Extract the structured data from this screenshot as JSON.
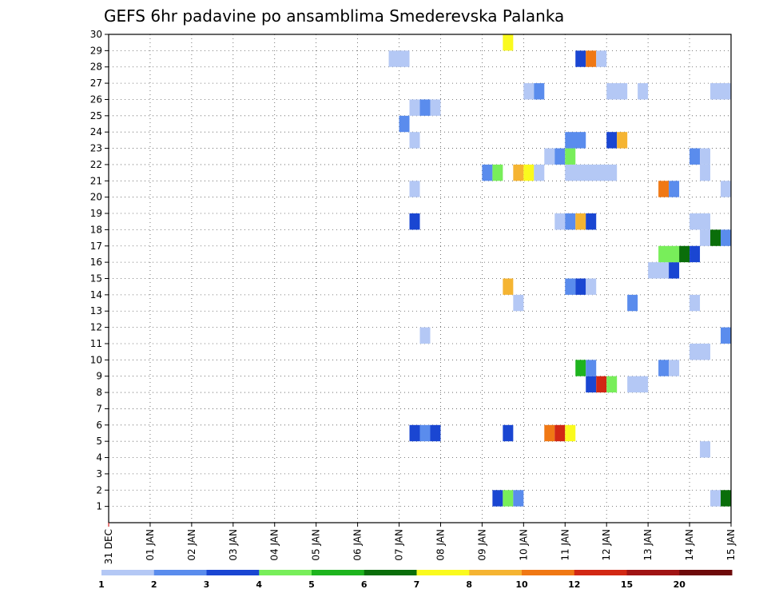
{
  "chart_data": {
    "type": "heatmap",
    "title": "GEFS 6hr padavine po ansamblima Smederevska Palanka",
    "y_ticks": [
      "1",
      "2",
      "3",
      "4",
      "5",
      "6",
      "7",
      "8",
      "9",
      "10",
      "11",
      "12",
      "13",
      "14",
      "15",
      "16",
      "17",
      "18",
      "19",
      "20",
      "21",
      "22",
      "23",
      "24",
      "25",
      "26",
      "27",
      "28",
      "29",
      "30"
    ],
    "x_ticks": [
      "31 DEC",
      "01 JAN",
      "02 JAN",
      "03 JAN",
      "04 JAN",
      "05 JAN",
      "06 JAN",
      "07 JAN",
      "08 JAN",
      "09 JAN",
      "10 JAN",
      "11 JAN",
      "12 JAN",
      "13 JAN",
      "14 JAN",
      "15 JAN"
    ],
    "x_range_days": [
      0,
      15
    ],
    "y_range": [
      0,
      30
    ],
    "grid": "dotted",
    "legend": {
      "placement": "bottom",
      "colors": [
        "#b4c8f5",
        "#5a8ced",
        "#1a46d2",
        "#78ee5a",
        "#1eb41e",
        "#0a6e0a",
        "#fafa1e",
        "#f5b432",
        "#f07814",
        "#d22814",
        "#a01414",
        "#6e0a0a"
      ],
      "labels": [
        "1",
        "2",
        "3",
        "4",
        "5",
        "6",
        "7",
        "8",
        "10",
        "12",
        "15",
        "20"
      ]
    },
    "cells": [
      {
        "member": 1,
        "start": 9.25,
        "end": 9.5,
        "color": "#1a46d2"
      },
      {
        "member": 1,
        "start": 9.5,
        "end": 9.75,
        "color": "#78ee5a"
      },
      {
        "member": 1,
        "start": 9.75,
        "end": 10.0,
        "color": "#5a8ced"
      },
      {
        "member": 1,
        "start": 14.5,
        "end": 14.75,
        "color": "#b4c8f5"
      },
      {
        "member": 1,
        "start": 14.75,
        "end": 15.0,
        "color": "#0a6e0a"
      },
      {
        "member": 4,
        "start": 14.25,
        "end": 14.5,
        "color": "#b4c8f5"
      },
      {
        "member": 5,
        "start": 7.25,
        "end": 7.5,
        "color": "#1a46d2"
      },
      {
        "member": 5,
        "start": 7.5,
        "end": 7.75,
        "color": "#5a8ced"
      },
      {
        "member": 5,
        "start": 7.75,
        "end": 8.0,
        "color": "#1a46d2"
      },
      {
        "member": 5,
        "start": 9.5,
        "end": 9.75,
        "color": "#1a46d2"
      },
      {
        "member": 5,
        "start": 10.5,
        "end": 10.75,
        "color": "#f07814"
      },
      {
        "member": 5,
        "start": 10.75,
        "end": 11.0,
        "color": "#d22814"
      },
      {
        "member": 5,
        "start": 11.0,
        "end": 11.25,
        "color": "#fafa1e"
      },
      {
        "member": 8,
        "start": 11.5,
        "end": 11.75,
        "color": "#1a46d2"
      },
      {
        "member": 8,
        "start": 11.75,
        "end": 12.0,
        "color": "#d22814"
      },
      {
        "member": 8,
        "start": 12.0,
        "end": 12.25,
        "color": "#78ee5a"
      },
      {
        "member": 8,
        "start": 12.5,
        "end": 13.0,
        "color": "#b4c8f5"
      },
      {
        "member": 9,
        "start": 11.25,
        "end": 11.5,
        "color": "#1eb41e"
      },
      {
        "member": 9,
        "start": 11.5,
        "end": 11.75,
        "color": "#5a8ced"
      },
      {
        "member": 9,
        "start": 13.25,
        "end": 13.5,
        "color": "#5a8ced"
      },
      {
        "member": 9,
        "start": 13.5,
        "end": 13.75,
        "color": "#b4c8f5"
      },
      {
        "member": 10,
        "start": 14.0,
        "end": 14.5,
        "color": "#b4c8f5"
      },
      {
        "member": 11,
        "start": 7.5,
        "end": 7.75,
        "color": "#b4c8f5"
      },
      {
        "member": 11,
        "start": 14.75,
        "end": 15.0,
        "color": "#5a8ced"
      },
      {
        "member": 13,
        "start": 9.75,
        "end": 10.0,
        "color": "#b4c8f5"
      },
      {
        "member": 13,
        "start": 12.5,
        "end": 12.75,
        "color": "#5a8ced"
      },
      {
        "member": 13,
        "start": 14.0,
        "end": 14.25,
        "color": "#b4c8f5"
      },
      {
        "member": 14,
        "start": 9.5,
        "end": 9.75,
        "color": "#f5b432"
      },
      {
        "member": 14,
        "start": 11.0,
        "end": 11.25,
        "color": "#5a8ced"
      },
      {
        "member": 14,
        "start": 11.25,
        "end": 11.5,
        "color": "#1a46d2"
      },
      {
        "member": 14,
        "start": 11.5,
        "end": 11.75,
        "color": "#b4c8f5"
      },
      {
        "member": 15,
        "start": 13.0,
        "end": 13.5,
        "color": "#b4c8f5"
      },
      {
        "member": 15,
        "start": 13.5,
        "end": 13.75,
        "color": "#1a46d2"
      },
      {
        "member": 16,
        "start": 13.25,
        "end": 13.75,
        "color": "#78ee5a"
      },
      {
        "member": 16,
        "start": 13.75,
        "end": 14.0,
        "color": "#0a6e0a"
      },
      {
        "member": 16,
        "start": 14.0,
        "end": 14.25,
        "color": "#1a46d2"
      },
      {
        "member": 17,
        "start": 14.25,
        "end": 14.5,
        "color": "#b4c8f5"
      },
      {
        "member": 17,
        "start": 14.5,
        "end": 14.75,
        "color": "#0a6e0a"
      },
      {
        "member": 17,
        "start": 14.75,
        "end": 15.0,
        "color": "#5a8ced"
      },
      {
        "member": 18,
        "start": 7.25,
        "end": 7.5,
        "color": "#1a46d2"
      },
      {
        "member": 18,
        "start": 10.75,
        "end": 11.0,
        "color": "#b4c8f5"
      },
      {
        "member": 18,
        "start": 11.0,
        "end": 11.25,
        "color": "#5a8ced"
      },
      {
        "member": 18,
        "start": 11.25,
        "end": 11.5,
        "color": "#f5b432"
      },
      {
        "member": 18,
        "start": 11.5,
        "end": 11.75,
        "color": "#1a46d2"
      },
      {
        "member": 18,
        "start": 14.0,
        "end": 14.5,
        "color": "#b4c8f5"
      },
      {
        "member": 20,
        "start": 14.75,
        "end": 15.0,
        "color": "#b4c8f5"
      },
      {
        "member": 20,
        "start": 7.25,
        "end": 7.5,
        "color": "#b4c8f5"
      },
      {
        "member": 20,
        "start": 13.25,
        "end": 13.5,
        "color": "#f07814"
      },
      {
        "member": 20,
        "start": 13.5,
        "end": 13.75,
        "color": "#5a8ced"
      },
      {
        "member": 21,
        "start": 9.0,
        "end": 9.25,
        "color": "#5a8ced"
      },
      {
        "member": 21,
        "start": 9.25,
        "end": 9.5,
        "color": "#78ee5a"
      },
      {
        "member": 21,
        "start": 9.75,
        "end": 10.0,
        "color": "#f5b432"
      },
      {
        "member": 21,
        "start": 10.0,
        "end": 10.25,
        "color": "#fafa1e"
      },
      {
        "member": 21,
        "start": 10.25,
        "end": 10.5,
        "color": "#b4c8f5"
      },
      {
        "member": 21,
        "start": 11.0,
        "end": 12.25,
        "color": "#b4c8f5"
      },
      {
        "member": 21,
        "start": 14.25,
        "end": 14.5,
        "color": "#b4c8f5"
      },
      {
        "member": 22,
        "start": 10.5,
        "end": 10.75,
        "color": "#b4c8f5"
      },
      {
        "member": 22,
        "start": 10.75,
        "end": 11.0,
        "color": "#5a8ced"
      },
      {
        "member": 22,
        "start": 11.0,
        "end": 11.25,
        "color": "#78ee5a"
      },
      {
        "member": 22,
        "start": 14.0,
        "end": 14.25,
        "color": "#5a8ced"
      },
      {
        "member": 22,
        "start": 14.25,
        "end": 14.5,
        "color": "#b4c8f5"
      },
      {
        "member": 23,
        "start": 7.25,
        "end": 7.5,
        "color": "#b4c8f5"
      },
      {
        "member": 23,
        "start": 11.0,
        "end": 11.5,
        "color": "#5a8ced"
      },
      {
        "member": 23,
        "start": 12.0,
        "end": 12.25,
        "color": "#1a46d2"
      },
      {
        "member": 23,
        "start": 12.25,
        "end": 12.5,
        "color": "#f5b432"
      },
      {
        "member": 24,
        "start": 7.0,
        "end": 7.25,
        "color": "#5a8ced"
      },
      {
        "member": 25,
        "start": 7.25,
        "end": 7.5,
        "color": "#b4c8f5"
      },
      {
        "member": 25,
        "start": 7.5,
        "end": 7.75,
        "color": "#5a8ced"
      },
      {
        "member": 25,
        "start": 7.75,
        "end": 8.0,
        "color": "#b4c8f5"
      },
      {
        "member": 26,
        "start": 10.0,
        "end": 10.25,
        "color": "#b4c8f5"
      },
      {
        "member": 26,
        "start": 10.25,
        "end": 10.5,
        "color": "#5a8ced"
      },
      {
        "member": 26,
        "start": 12.0,
        "end": 12.5,
        "color": "#b4c8f5"
      },
      {
        "member": 26,
        "start": 12.75,
        "end": 13.0,
        "color": "#b4c8f5"
      },
      {
        "member": 26,
        "start": 14.5,
        "end": 15.0,
        "color": "#b4c8f5"
      },
      {
        "member": 28,
        "start": 6.75,
        "end": 7.25,
        "color": "#b4c8f5"
      },
      {
        "member": 28,
        "start": 11.25,
        "end": 11.5,
        "color": "#1a46d2"
      },
      {
        "member": 28,
        "start": 11.5,
        "end": 11.75,
        "color": "#f07814"
      },
      {
        "member": 28,
        "start": 11.75,
        "end": 12.0,
        "color": "#b4c8f5"
      },
      {
        "member": 29,
        "start": 9.5,
        "end": 9.75,
        "color": "#fafa1e"
      }
    ]
  }
}
